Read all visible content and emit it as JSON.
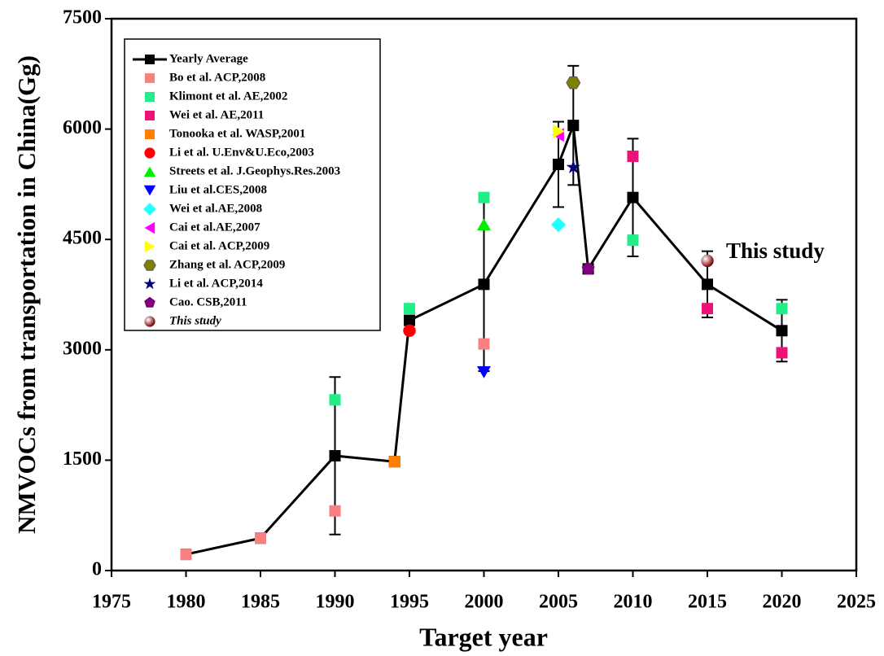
{
  "chart_data": {
    "type": "scatter",
    "xlabel": "Target year",
    "ylabel": "NMVOCs from transportation in China(Gg)",
    "xlim": [
      1975,
      2025
    ],
    "xticks": [
      1975,
      1980,
      1985,
      1990,
      1995,
      2000,
      2005,
      2010,
      2015,
      2020,
      2025
    ],
    "ylim": [
      0,
      7500
    ],
    "yticks": [
      0,
      1500,
      3000,
      4500,
      6000,
      7500
    ],
    "annotation": "This study",
    "legend": "upper left",
    "series": [
      {
        "name": "Yearly Average",
        "color": "#000000",
        "marker": "square",
        "line": true,
        "x": [
          1980,
          1985,
          1990,
          1994,
          1995,
          2000,
          2005,
          2006,
          2007,
          2010,
          2015,
          2020
        ],
        "values": [
          220,
          440,
          1560,
          1480,
          3400,
          3890,
          5520,
          6050,
          4100,
          5070,
          3890,
          3260
        ],
        "errors": [
          null,
          null,
          1070,
          null,
          null,
          1180,
          580,
          810,
          null,
          800,
          450,
          420
        ]
      },
      {
        "name": "Bo et al. ACP,2008",
        "color": "#f88080",
        "marker": "square",
        "x": [
          1980,
          1985,
          1990,
          2000
        ],
        "values": [
          220,
          440,
          810,
          3080
        ]
      },
      {
        "name": "Klimont et al. AE,2002",
        "color": "#22ee88",
        "marker": "square",
        "x": [
          1990,
          1995,
          2000,
          2010,
          2020
        ],
        "values": [
          2320,
          3560,
          5070,
          4490,
          3560
        ]
      },
      {
        "name": "Wei et al. AE,2011",
        "color": "#ee1177",
        "marker": "square",
        "x": [
          2010,
          2015,
          2020
        ],
        "values": [
          5630,
          3560,
          2960
        ]
      },
      {
        "name": "Tonooka et al. WASP,2001",
        "color": "#ff8000",
        "marker": "square",
        "x": [
          1994
        ],
        "values": [
          1480
        ]
      },
      {
        "name": "Li et al. U.Env&U.Eco,2003",
        "color": "#ff0000",
        "marker": "circle",
        "x": [
          1995
        ],
        "values": [
          3260
        ]
      },
      {
        "name": "Streets et al. J.Geophys.Res.2003",
        "color": "#00ee00",
        "marker": "triangle-up",
        "x": [
          2000
        ],
        "values": [
          4700
        ]
      },
      {
        "name": "Liu et al.CES,2008",
        "color": "#0000ff",
        "marker": "triangle-down",
        "x": [
          2000
        ],
        "values": [
          2700
        ]
      },
      {
        "name": "Wei et al.AE,2008",
        "color": "#22ffff",
        "marker": "diamond",
        "x": [
          2005
        ],
        "values": [
          4700
        ]
      },
      {
        "name": "Cai et al.AE,2007",
        "color": "#ff00ff",
        "marker": "triangle-left",
        "x": [
          2005
        ],
        "values": [
          5920
        ]
      },
      {
        "name": "Cai et al. ACP,2009",
        "color": "#ffff00",
        "marker": "triangle-right",
        "x": [
          2005
        ],
        "values": [
          5970
        ]
      },
      {
        "name": "Zhang et al. ACP,2009",
        "color": "#808000",
        "marker": "hexagon",
        "x": [
          2006
        ],
        "values": [
          6630
        ]
      },
      {
        "name": "Li et al. ACP,2014",
        "color": "#000080",
        "marker": "star",
        "x": [
          2006
        ],
        "values": [
          5480
        ]
      },
      {
        "name": "Cao. CSB,2011",
        "color": "#800080",
        "marker": "pentagon",
        "x": [
          2007
        ],
        "values": [
          4100
        ]
      },
      {
        "name": "This study",
        "color": "#800000",
        "marker": "sphere",
        "x": [
          2015
        ],
        "values": [
          4210
        ]
      }
    ]
  }
}
